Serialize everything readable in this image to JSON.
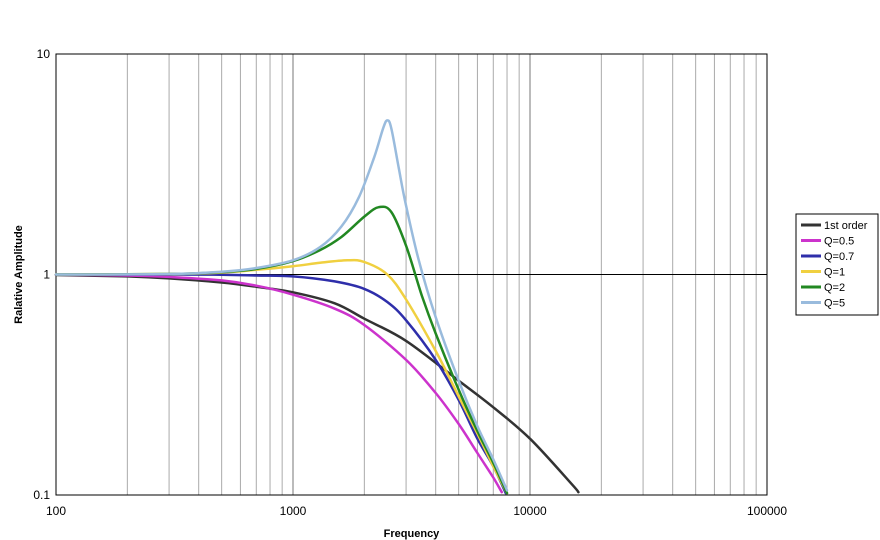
{
  "chart_data": {
    "type": "line",
    "title": "",
    "xlabel": "Frequency",
    "ylabel": "Ralative Amplitude",
    "x_scale": "log",
    "y_scale": "log",
    "xlim": [
      100,
      100000
    ],
    "ylim": [
      0.1,
      10
    ],
    "x_ticks": [
      "100",
      "1000",
      "10000",
      "100000"
    ],
    "y_ticks": [
      "0.1",
      "1",
      "10"
    ],
    "grid": "vertical minor and major lines; horizontal line at 1",
    "legend_position": "right",
    "series": [
      {
        "name": "1st order",
        "color": "#333333",
        "x": [
          100,
          200,
          300,
          500,
          700,
          1000,
          1500,
          2000,
          3000,
          5000,
          7000,
          10000,
          15000,
          16000
        ],
        "y": [
          0.995,
          0.98,
          0.96,
          0.92,
          0.88,
          0.83,
          0.74,
          0.63,
          0.5,
          0.33,
          0.25,
          0.18,
          0.112,
          0.103
        ]
      },
      {
        "name": "Q=0.5",
        "color": "#cc33cc",
        "x": [
          100,
          200,
          300,
          500,
          700,
          1000,
          1500,
          2000,
          3000,
          4000,
          5000,
          6000,
          7000,
          7600
        ],
        "y": [
          0.998,
          0.99,
          0.975,
          0.94,
          0.89,
          0.81,
          0.7,
          0.59,
          0.41,
          0.29,
          0.21,
          0.155,
          0.12,
          0.103
        ]
      },
      {
        "name": "Q=0.7",
        "color": "#2e2eaa",
        "x": [
          100,
          300,
          500,
          700,
          1000,
          1500,
          2000,
          2500,
          3000,
          4000,
          5000,
          6000,
          7000,
          7900
        ],
        "y": [
          1.0,
          1.0,
          0.998,
          0.99,
          0.98,
          0.93,
          0.86,
          0.75,
          0.62,
          0.41,
          0.27,
          0.18,
          0.135,
          0.102
        ]
      },
      {
        "name": "Q=1",
        "color": "#f0d040",
        "x": [
          100,
          300,
          500,
          700,
          1000,
          1300,
          1700,
          2000,
          2500,
          3000,
          4000,
          5000,
          6000,
          7000,
          8000
        ],
        "y": [
          1.0,
          1.005,
          1.02,
          1.05,
          1.09,
          1.13,
          1.16,
          1.14,
          1.0,
          0.77,
          0.45,
          0.28,
          0.19,
          0.135,
          0.102
        ]
      },
      {
        "name": "Q=2",
        "color": "#228822",
        "x": [
          100,
          300,
          500,
          700,
          1000,
          1300,
          1600,
          2000,
          2300,
          2600,
          3000,
          3500,
          4000,
          5000,
          6000,
          7000,
          8000
        ],
        "y": [
          1.0,
          1.005,
          1.025,
          1.06,
          1.15,
          1.29,
          1.48,
          1.83,
          2.02,
          1.92,
          1.35,
          0.8,
          0.54,
          0.3,
          0.195,
          0.14,
          0.102
        ]
      },
      {
        "name": "Q=5",
        "color": "#99bbdd",
        "x": [
          100,
          300,
          500,
          700,
          1000,
          1300,
          1600,
          1900,
          2200,
          2400,
          2500,
          2600,
          2800,
          3000,
          3400,
          4000,
          5000,
          6000,
          7000,
          8000
        ],
        "y": [
          1.0,
          1.005,
          1.03,
          1.07,
          1.16,
          1.33,
          1.65,
          2.25,
          3.4,
          4.6,
          5.0,
          4.6,
          3.0,
          2.05,
          1.15,
          0.64,
          0.33,
          0.205,
          0.145,
          0.105
        ]
      }
    ]
  }
}
